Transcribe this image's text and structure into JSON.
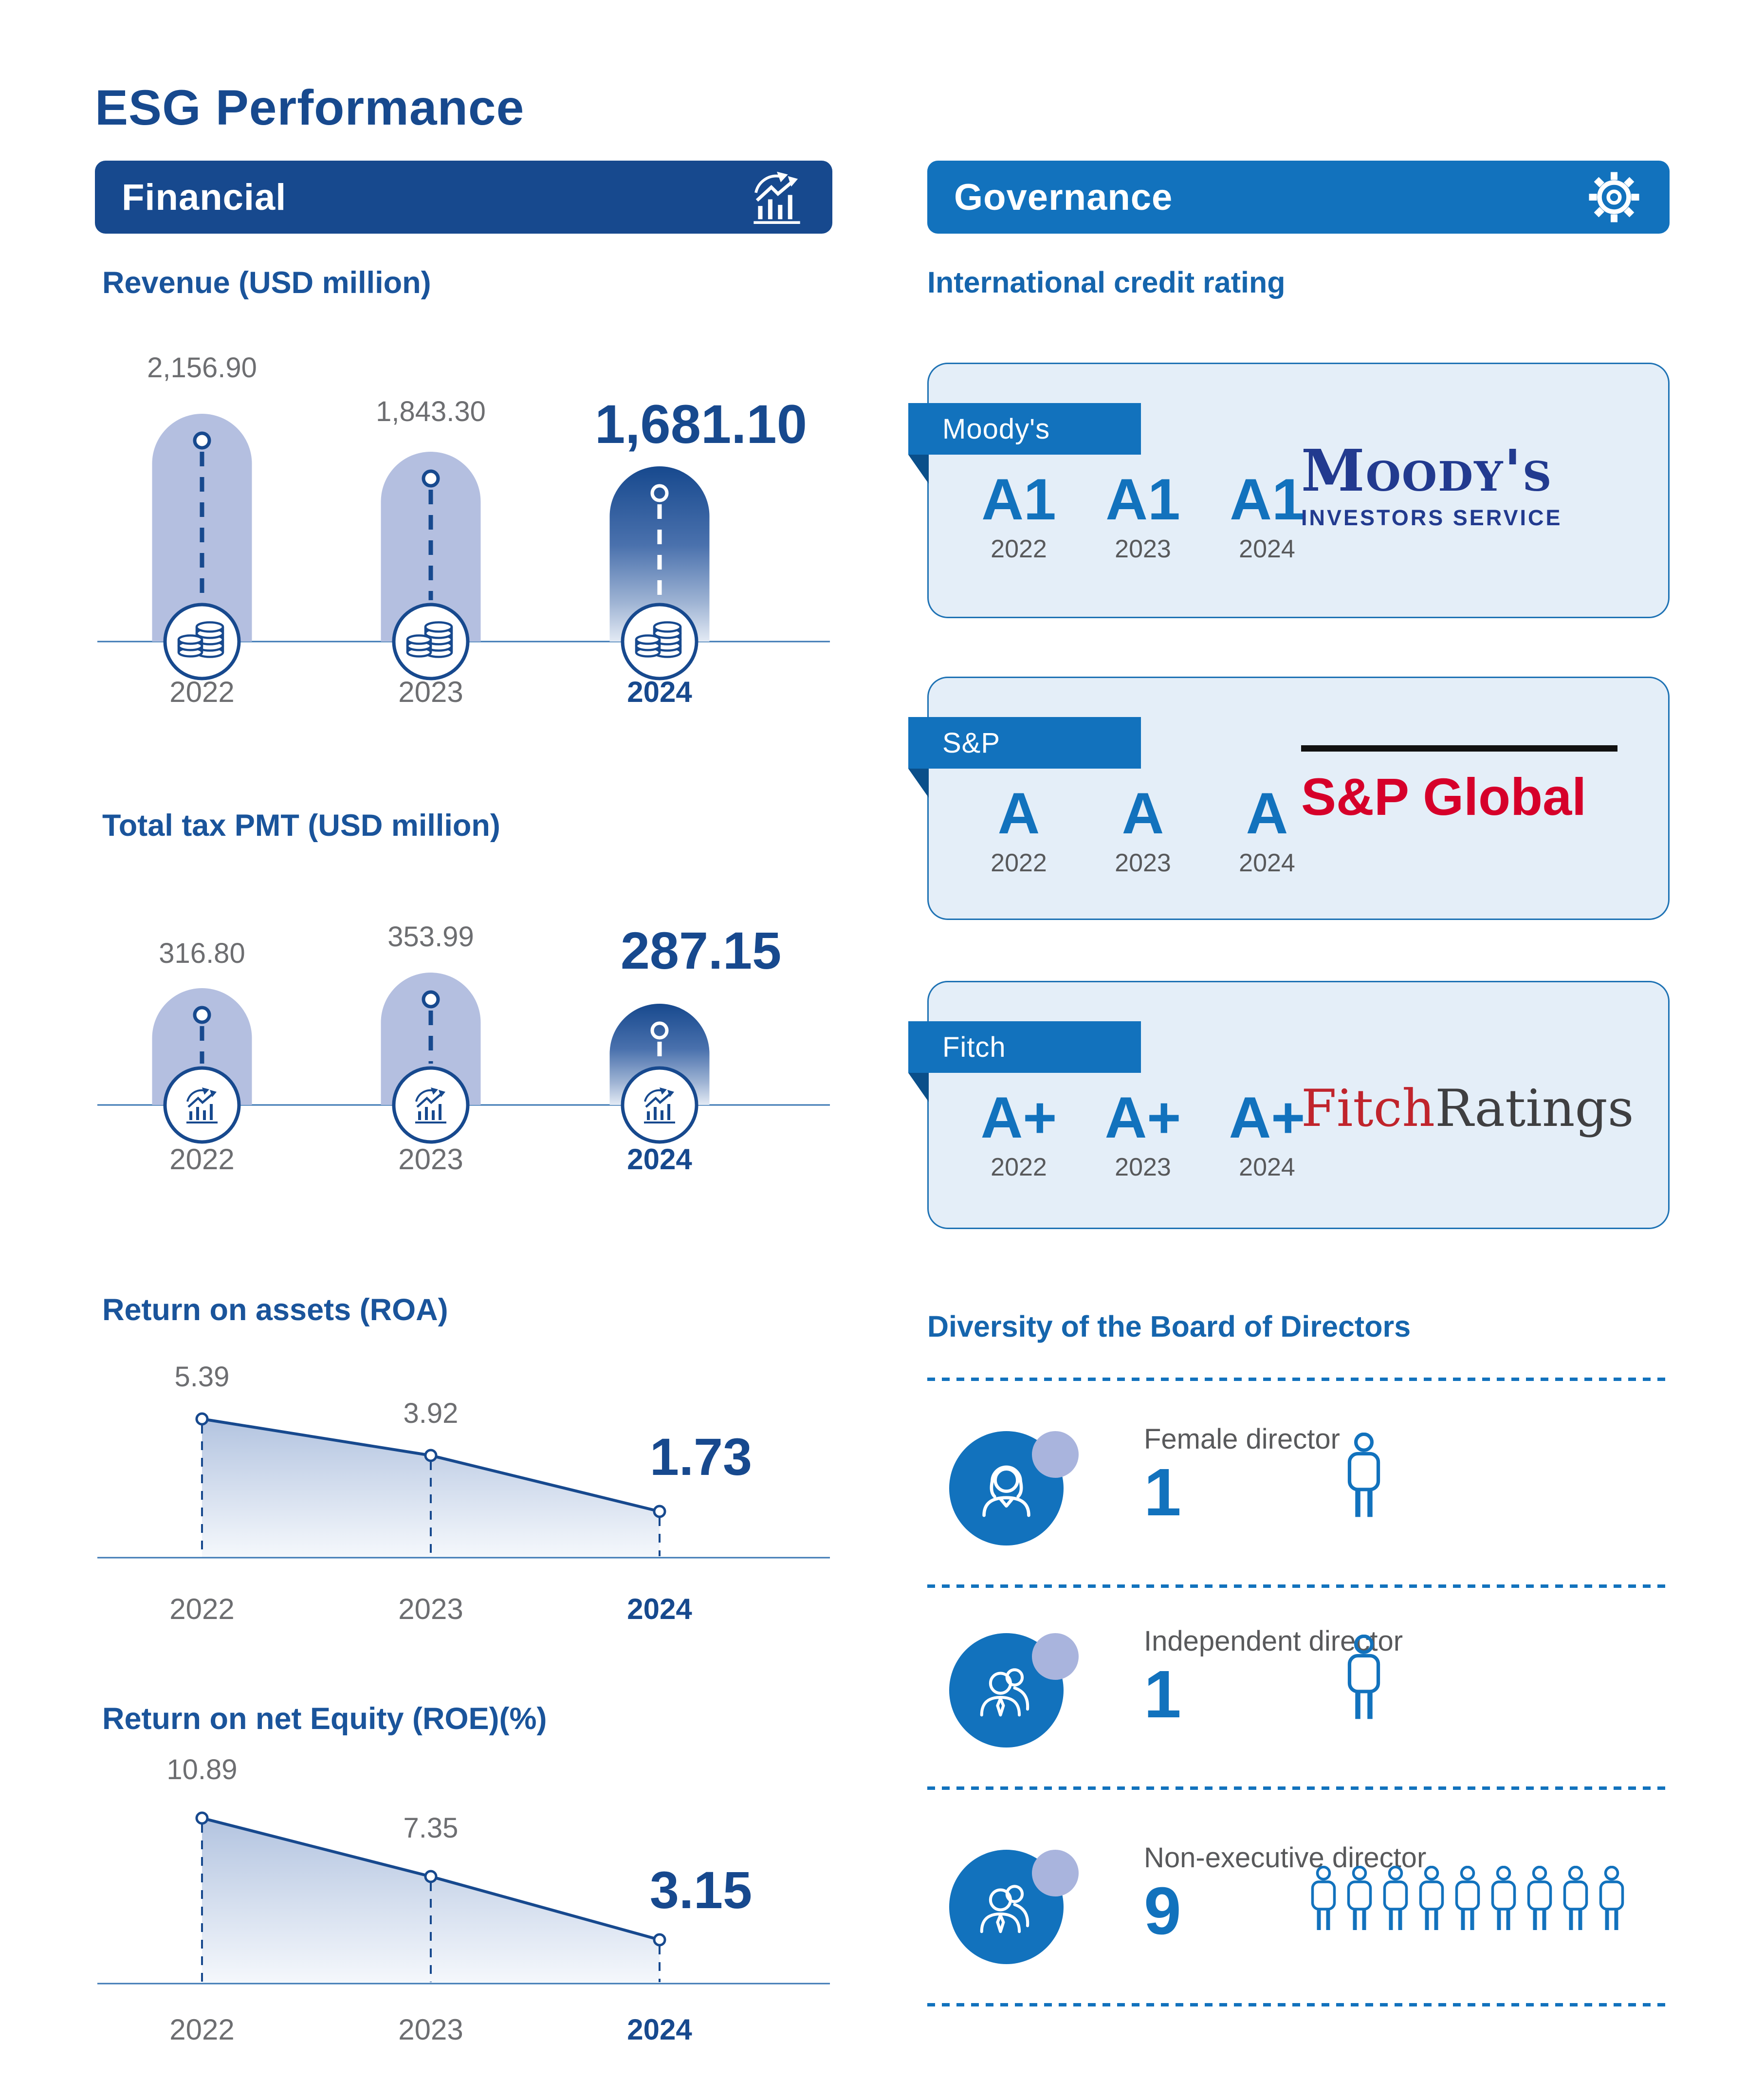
{
  "page": {
    "title": "ESG Performance"
  },
  "financial": {
    "header": "Financial"
  },
  "chart_data": [
    {
      "id": "revenue",
      "type": "bar",
      "title": "Revenue (USD million)",
      "categories": [
        "2022",
        "2023",
        "2024"
      ],
      "values": [
        2156.9,
        1843.3,
        1681.1
      ],
      "value_labels": [
        "2,156.90",
        "1,843.30",
        "1,681.10"
      ],
      "highlight_index": 2,
      "marker_icon": "coins",
      "xlabel": "",
      "ylabel": "",
      "grid": false,
      "legend": "none"
    },
    {
      "id": "tax",
      "type": "bar",
      "title": "Total tax PMT (USD million)",
      "categories": [
        "2022",
        "2023",
        "2024"
      ],
      "values": [
        316.8,
        353.99,
        287.15
      ],
      "value_labels": [
        "316.80",
        "353.99",
        "287.15"
      ],
      "highlight_index": 2,
      "marker_icon": "trend-chart",
      "xlabel": "",
      "ylabel": "",
      "grid": false,
      "legend": "none"
    },
    {
      "id": "roa",
      "type": "area",
      "title": "Return on assets (ROA)",
      "categories": [
        "2022",
        "2023",
        "2024"
      ],
      "values": [
        5.39,
        3.92,
        1.73
      ],
      "value_labels": [
        "5.39",
        "3.92",
        "1.73"
      ],
      "highlight_index": 2,
      "xlabel": "",
      "ylabel": "",
      "grid": false,
      "legend": "none"
    },
    {
      "id": "roe",
      "type": "area",
      "title": "Return on net Equity (ROE)(%)",
      "categories": [
        "2022",
        "2023",
        "2024"
      ],
      "values": [
        10.89,
        7.35,
        3.15
      ],
      "value_labels": [
        "10.89",
        "7.35",
        "3.15"
      ],
      "highlight_index": 2,
      "xlabel": "",
      "ylabel": "",
      "grid": false,
      "legend": "none"
    }
  ],
  "governance": {
    "header": "Governance",
    "credit_rating_title": "International credit rating",
    "agencies": [
      {
        "name": "Moody's",
        "ratings": [
          {
            "grade": "A1",
            "year": "2022"
          },
          {
            "grade": "A1",
            "year": "2023"
          },
          {
            "grade": "A1",
            "year": "2024"
          }
        ],
        "logo": {
          "line1": "Moody's",
          "line2": "INVESTORS SERVICE"
        }
      },
      {
        "name": "S&P",
        "ratings": [
          {
            "grade": "A",
            "year": "2022"
          },
          {
            "grade": "A",
            "year": "2023"
          },
          {
            "grade": "A",
            "year": "2024"
          }
        ],
        "logo": {
          "text": "S&P Global"
        }
      },
      {
        "name": "Fitch",
        "ratings": [
          {
            "grade": "A+",
            "year": "2022"
          },
          {
            "grade": "A+",
            "year": "2023"
          },
          {
            "grade": "A+",
            "year": "2024"
          }
        ],
        "logo": {
          "part1": "Fitch",
          "part2": "Ratings"
        }
      }
    ],
    "diversity": {
      "title": "Diversity of the Board of Directors",
      "rows": [
        {
          "label": "Female director",
          "count": "1",
          "icon": "female-person"
        },
        {
          "label": "Independent director",
          "count": "1",
          "icon": "business-people"
        },
        {
          "label": "Non-executive director",
          "count": "9",
          "icon": "business-people"
        }
      ]
    }
  },
  "colors": {
    "navy": "#17498e",
    "blue": "#1272bd",
    "lavender": "#b4bfe0",
    "badge": "#a9b4dd",
    "card_bg": "#e4eef8",
    "card_border": "#1e72b4",
    "gray_text": "#6d6e71",
    "label_gray": "#58595b",
    "axis": "#3c78b4",
    "ribbon_fold": "#0a4f8a",
    "moodys_navy": "#223a8f",
    "sp_red": "#d6002a",
    "fitch_red": "#c0242c",
    "fitch_gray": "#3f3f41",
    "black": "#111111"
  }
}
